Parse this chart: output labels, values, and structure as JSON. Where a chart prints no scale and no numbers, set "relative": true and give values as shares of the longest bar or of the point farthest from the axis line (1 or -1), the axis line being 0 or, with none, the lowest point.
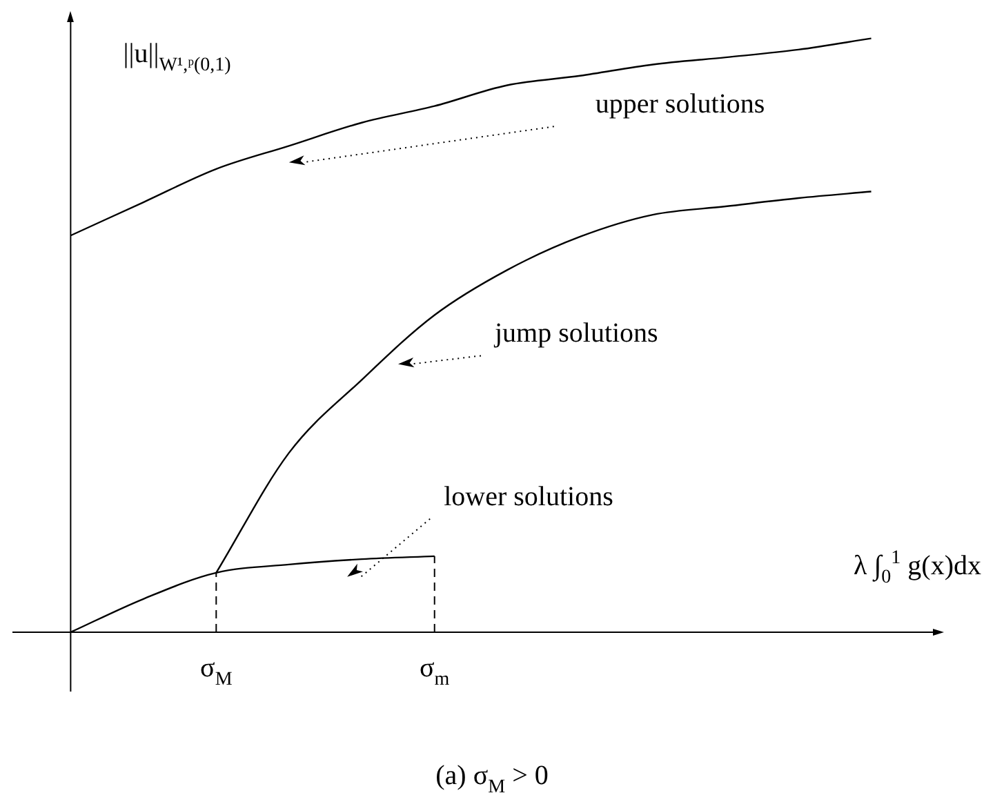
{
  "chart_data": {
    "type": "line",
    "relative": true,
    "xlabel": "λ ∫$_{0}$$^{1}$ g(x)dx",
    "ylabel": "||u||$_{W¹,ᵖ(0,1)}$",
    "categories": [
      null,
      null,
      "σ$_{M}$",
      null,
      null,
      "σ$_{m}$",
      null,
      null,
      null,
      null,
      null,
      null
    ],
    "series": [
      {
        "name": "upper solutions",
        "color": "#000000",
        "values": [
          0.668,
          0.724,
          0.78,
          0.819,
          0.858,
          0.886,
          0.921,
          0.937,
          0.956,
          0.968,
          0.981,
          1.0
        ]
      },
      {
        "name": "jump solutions",
        "color": "#000000",
        "values": [
          null,
          null,
          0.1,
          0.302,
          0.425,
          0.534,
          0.61,
          0.666,
          0.703,
          0.717,
          0.731,
          0.742
        ]
      },
      {
        "name": "lower solutions",
        "color": "#000000",
        "values": [
          0,
          0.056,
          0.1,
          0.114,
          0.123,
          0.128,
          null,
          null,
          null,
          null,
          null,
          null
        ]
      }
    ],
    "ref_lines": [
      {
        "axis": "x",
        "value": "σ$_{M}$",
        "line_style": "dashed"
      },
      {
        "axis": "x",
        "value": "σ$_{m}$",
        "line_style": "dashed"
      }
    ],
    "legend": false,
    "marker": "none",
    "line_style": "solid",
    "annotations": [
      "(a) σ$_{M}$ > 0"
    ]
  }
}
